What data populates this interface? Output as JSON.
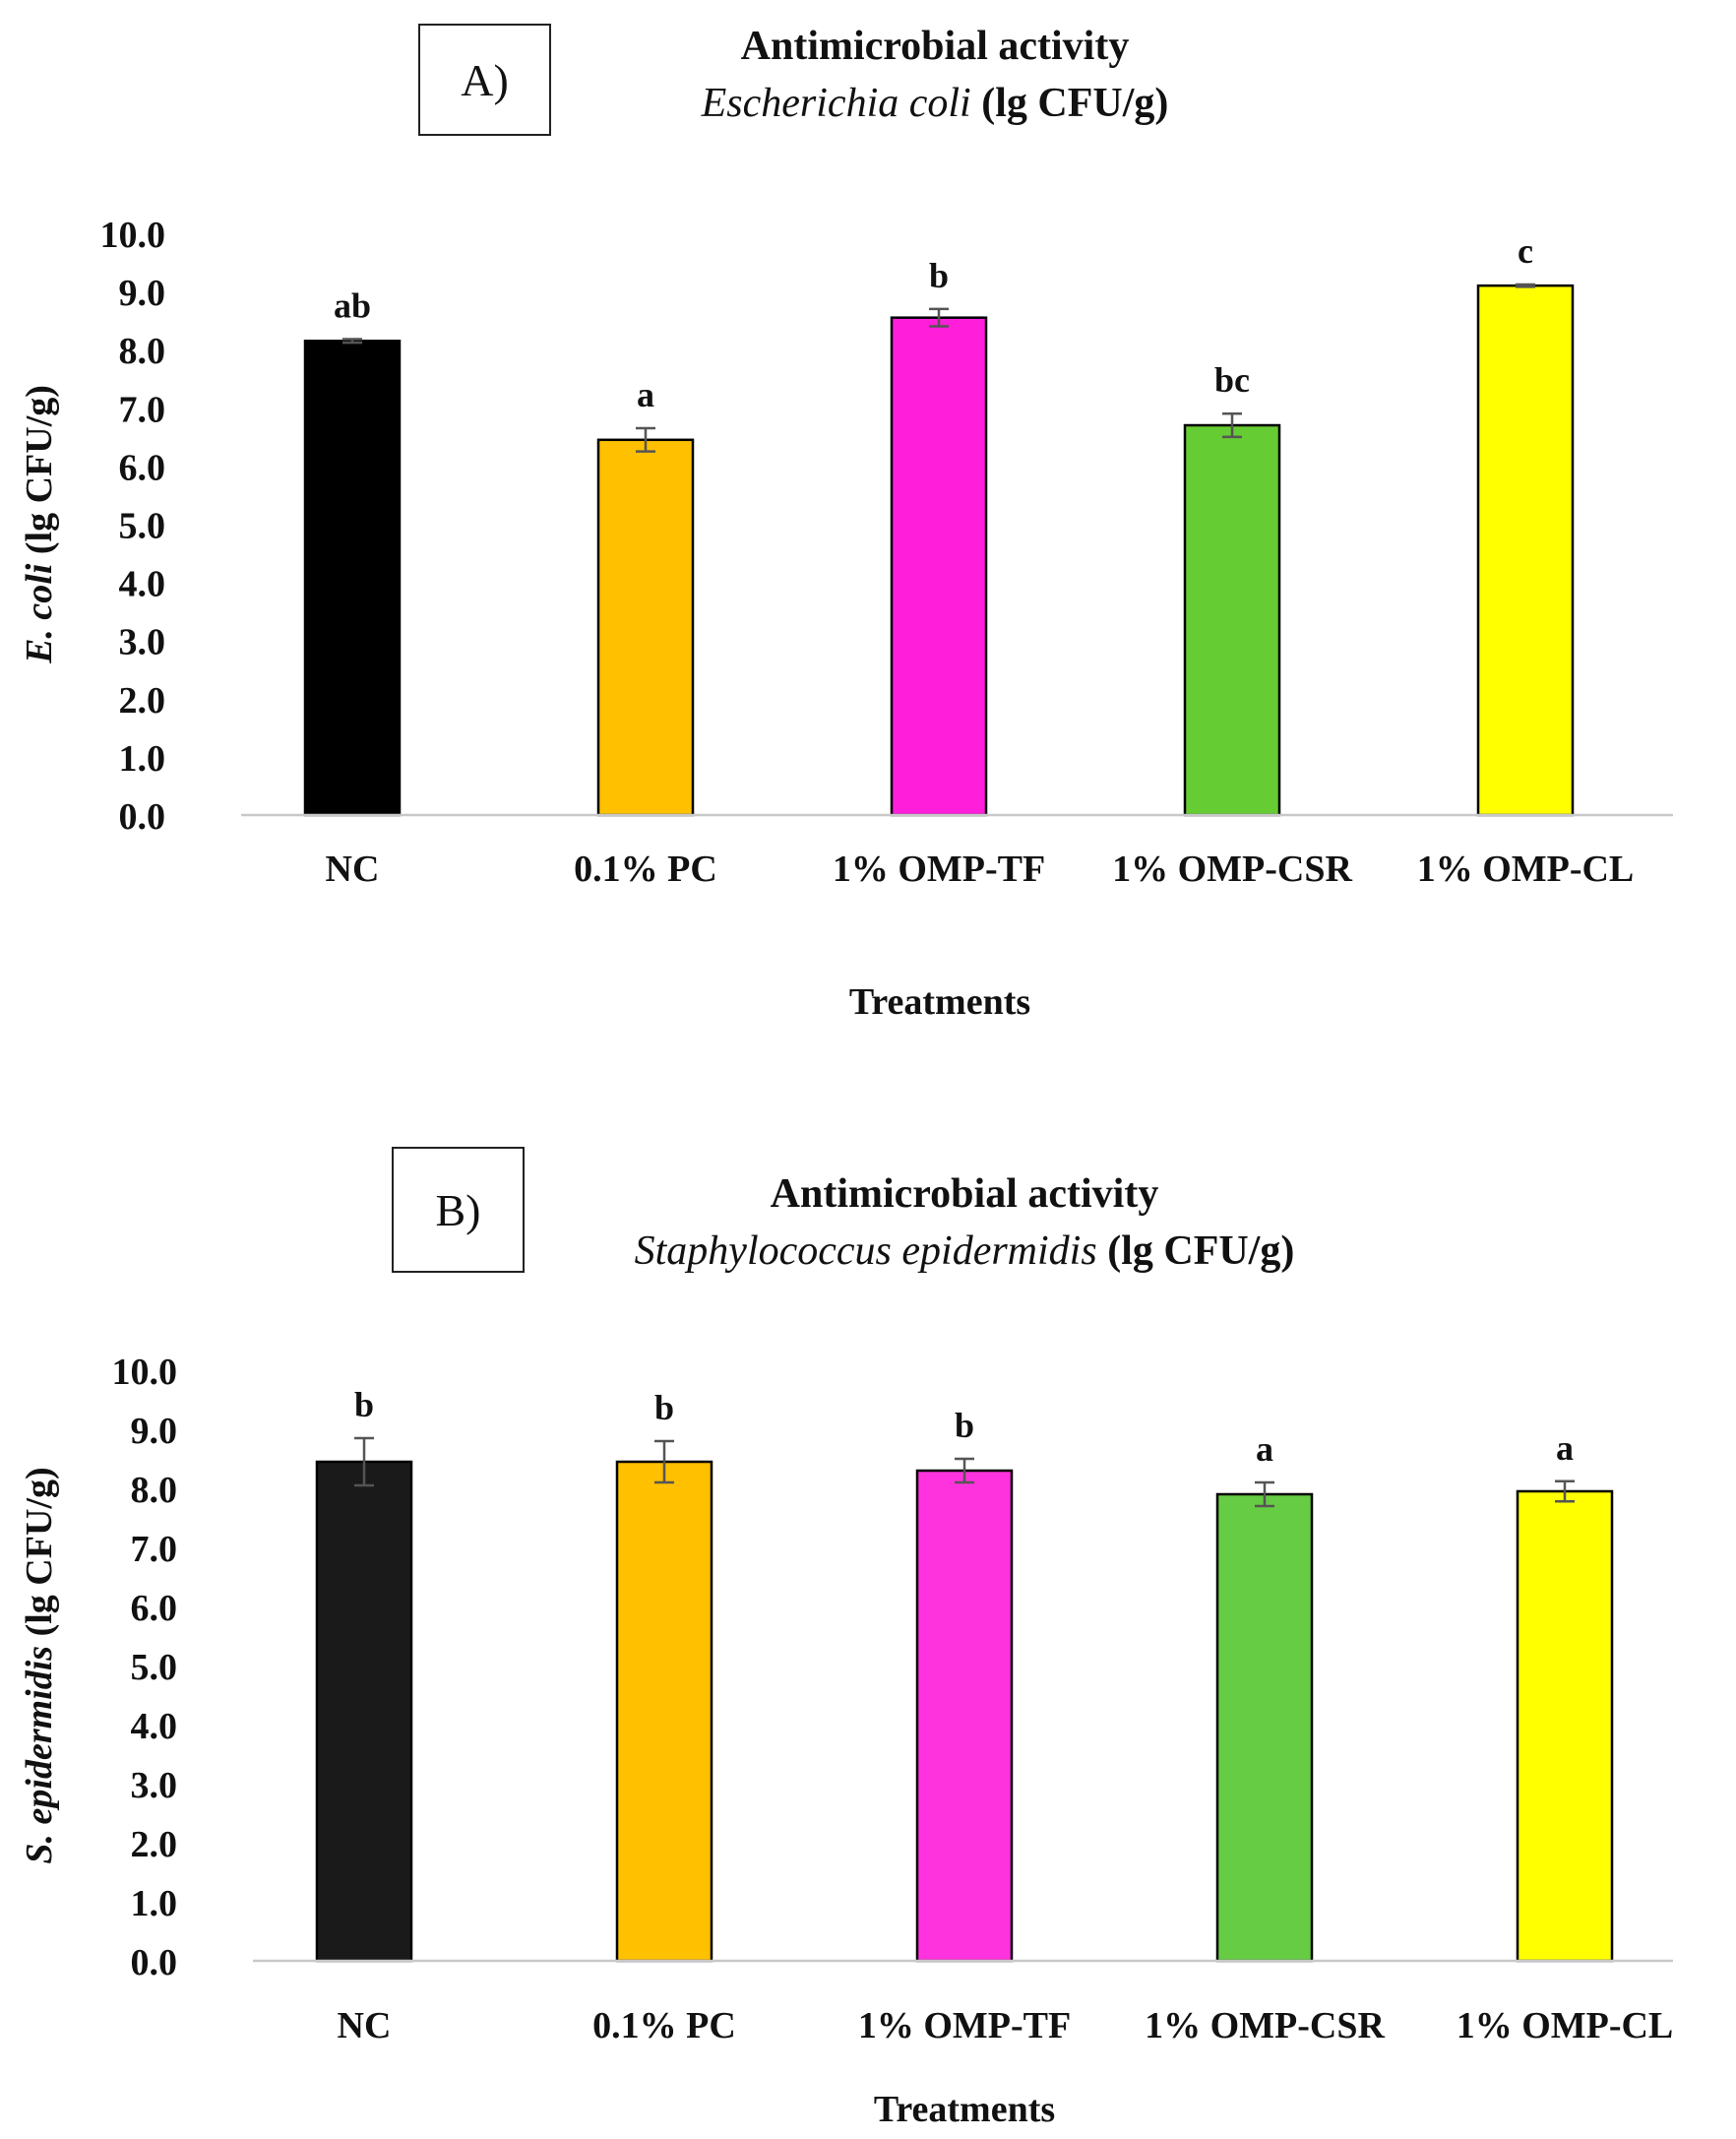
{
  "chart_data": [
    {
      "type": "bar",
      "panel_label": "A)",
      "title": "Antimicrobial activity",
      "subtitle_species": "Escherichia coli",
      "subtitle_unit": "(lg CFU/g)",
      "ylabel_species": "E. coli",
      "ylabel_unit": "(lg CFU/g)",
      "xlabel": "Treatments",
      "ylim": [
        0,
        10
      ],
      "yticks": [
        "0.0",
        "1.0",
        "2.0",
        "3.0",
        "4.0",
        "5.0",
        "6.0",
        "7.0",
        "8.0",
        "9.0",
        "10.0"
      ],
      "categories": [
        "NC",
        "0.1% PC",
        "1% OMP-TF",
        "1% OMP-CSR",
        "1% OMP-CL"
      ],
      "values": [
        8.15,
        6.45,
        8.55,
        6.7,
        9.1
      ],
      "errors": [
        0.03,
        0.2,
        0.15,
        0.2,
        0.02
      ],
      "significance": [
        "ab",
        "a",
        "b",
        "bc",
        "c"
      ],
      "colors": [
        "#000000",
        "#FFC000",
        "#FF1FDA",
        "#66CC33",
        "#FFFF00"
      ]
    },
    {
      "type": "bar",
      "panel_label": "B)",
      "title": "Antimicrobial activity",
      "subtitle_species": "Staphylococcus epidermidis",
      "subtitle_unit": "(lg CFU/g)",
      "ylabel_species": "S. epidermidis",
      "ylabel_unit": "(lg CFU/g)",
      "xlabel": "Treatments",
      "ylim": [
        0,
        10
      ],
      "yticks": [
        "0.0",
        "1.0",
        "2.0",
        "3.0",
        "4.0",
        "5.0",
        "6.0",
        "7.0",
        "8.0",
        "9.0",
        "10.0"
      ],
      "categories": [
        "NC",
        "0.1% PC",
        "1% OMP-TF",
        "1% OMP-CSR",
        "1% OMP-CL"
      ],
      "values": [
        8.45,
        8.45,
        8.3,
        7.9,
        7.95
      ],
      "errors": [
        0.4,
        0.35,
        0.2,
        0.2,
        0.17
      ],
      "significance": [
        "b",
        "b",
        "b",
        "a",
        "a"
      ],
      "colors": [
        "#1a1a1a",
        "#FFC000",
        "#FF33DD",
        "#66CC44",
        "#FFFF00"
      ]
    }
  ]
}
